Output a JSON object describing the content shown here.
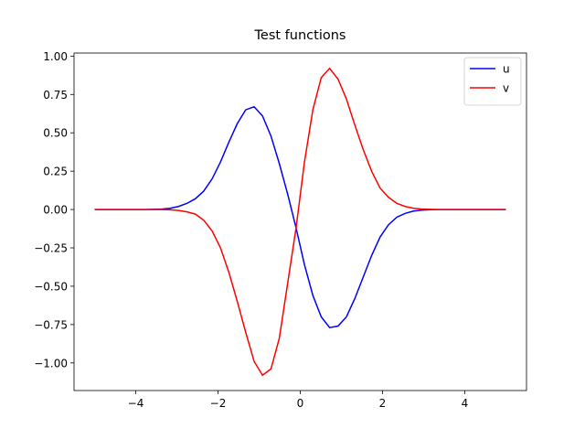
{
  "chart_data": {
    "type": "line",
    "title": "Test functions",
    "x": [
      -5.0,
      -4.796,
      -4.592,
      -4.388,
      -4.184,
      -3.98,
      -3.776,
      -3.571,
      -3.367,
      -3.163,
      -2.959,
      -2.755,
      -2.551,
      -2.347,
      -2.143,
      -1.939,
      -1.735,
      -1.531,
      -1.327,
      -1.122,
      -0.918,
      -0.714,
      -0.51,
      -0.306,
      -0.102,
      0.102,
      0.306,
      0.51,
      0.714,
      0.918,
      1.122,
      1.327,
      1.531,
      1.735,
      1.939,
      2.143,
      2.347,
      2.551,
      2.755,
      2.959,
      3.163,
      3.367,
      3.571,
      3.776,
      3.98,
      4.184,
      4.388,
      4.592,
      4.796,
      5.0
    ],
    "series": [
      {
        "name": "u",
        "color": "#0000ff",
        "values": [
          0,
          0,
          0,
          0,
          0,
          0,
          0,
          0.001,
          0.003,
          0.008,
          0.02,
          0.04,
          0.07,
          0.12,
          0.2,
          0.31,
          0.44,
          0.56,
          0.65,
          0.67,
          0.61,
          0.48,
          0.3,
          0.1,
          -0.12,
          -0.36,
          -0.56,
          -0.7,
          -0.77,
          -0.76,
          -0.7,
          -0.58,
          -0.44,
          -0.3,
          -0.18,
          -0.1,
          -0.05,
          -0.025,
          -0.01,
          -0.004,
          -0.001,
          0,
          0,
          0,
          0,
          0,
          0,
          0,
          0,
          0
        ]
      },
      {
        "name": "v",
        "color": "#ff0000",
        "values": [
          0,
          0,
          0,
          0,
          0,
          0,
          0,
          0,
          0,
          -0.002,
          -0.006,
          -0.015,
          -0.03,
          -0.07,
          -0.14,
          -0.25,
          -0.41,
          -0.6,
          -0.8,
          -0.99,
          -1.08,
          -1.04,
          -0.84,
          -0.48,
          -0.12,
          0.31,
          0.65,
          0.86,
          0.92,
          0.85,
          0.72,
          0.55,
          0.39,
          0.25,
          0.14,
          0.08,
          0.04,
          0.02,
          0.008,
          0.003,
          0.001,
          0,
          0,
          0,
          0,
          0,
          0,
          0,
          0,
          0
        ]
      }
    ],
    "xlim": [
      -5.5,
      5.5
    ],
    "ylim": [
      -1.18,
      1.02
    ],
    "xticks": [
      {
        "value": -4,
        "label": "−4"
      },
      {
        "value": -2,
        "label": "−2"
      },
      0,
      2,
      4
    ],
    "yticks": [
      {
        "value": -1,
        "label": "−1.00"
      },
      {
        "value": -0.75,
        "label": "−0.75"
      },
      {
        "value": -0.5,
        "label": "−0.50"
      },
      {
        "value": -0.25,
        "label": "−0.25"
      },
      {
        "value": 0,
        "label": "0.00"
      },
      {
        "value": 0.25,
        "label": "0.25"
      },
      {
        "value": 0.5,
        "label": "0.50"
      },
      {
        "value": 0.75,
        "label": "0.75"
      },
      {
        "value": 1,
        "label": "1.00"
      }
    ],
    "legend": "upper right",
    "grid": false
  }
}
